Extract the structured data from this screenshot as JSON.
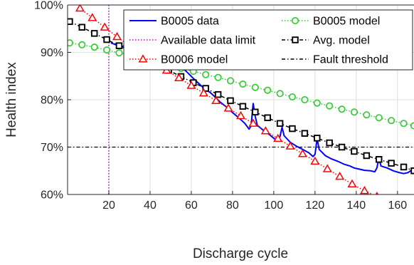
{
  "chart_data": {
    "type": "line",
    "xlabel": "Discharge cycle",
    "ylabel": "Health index",
    "xlim": [
      0,
      168
    ],
    "ylim": [
      60,
      100
    ],
    "x_ticks": [
      20,
      40,
      60,
      80,
      100,
      120,
      140,
      160
    ],
    "x_tick_labels": [
      "20",
      "40",
      "60",
      "80",
      "100",
      "120",
      "140",
      "160"
    ],
    "y_ticks": [
      60,
      70,
      80,
      90,
      100
    ],
    "y_tick_labels": [
      "60%",
      "70%",
      "80%",
      "90%",
      "100%"
    ],
    "grid": true,
    "legend_position": "top-right",
    "vlines": [
      {
        "name": "Available data limit",
        "x": 20,
        "color": "#cc00cc",
        "style": "dotted"
      }
    ],
    "hlines": [
      {
        "name": "Fault threshold",
        "y": 70,
        "color": "#000000",
        "style": "dashdot"
      }
    ],
    "series": [
      {
        "name": "B0005 data",
        "color": "#0000ff",
        "style": "solid",
        "marker": "none",
        "points": [
          [
            21,
            92.0
          ],
          [
            24,
            91.5
          ],
          [
            27,
            91.2
          ],
          [
            28,
            92.1
          ],
          [
            30,
            91.0
          ],
          [
            33,
            90.6
          ],
          [
            36,
            90.2
          ],
          [
            40,
            89.8
          ],
          [
            44,
            89.2
          ],
          [
            48,
            88.6
          ],
          [
            52,
            88.0
          ],
          [
            53,
            87.4
          ],
          [
            54,
            89.4
          ],
          [
            55,
            87.0
          ],
          [
            58,
            85.8
          ],
          [
            61,
            84.5
          ],
          [
            64,
            83.3
          ],
          [
            67,
            82.0
          ],
          [
            69,
            81.6
          ],
          [
            71,
            80.8
          ],
          [
            74,
            79.5
          ],
          [
            77,
            78.5
          ],
          [
            80,
            77.3
          ],
          [
            83,
            76.2
          ],
          [
            86,
            75.0
          ],
          [
            88,
            73.8
          ],
          [
            89,
            74.5
          ],
          [
            90,
            79.2
          ],
          [
            91,
            76.5
          ],
          [
            92,
            74.6
          ],
          [
            95,
            73.5
          ],
          [
            98,
            72.6
          ],
          [
            101,
            71.5
          ],
          [
            103,
            72.2
          ],
          [
            104,
            74.2
          ],
          [
            105,
            72.4
          ],
          [
            108,
            71.0
          ],
          [
            111,
            70.2
          ],
          [
            114,
            69.5
          ],
          [
            117,
            68.8
          ],
          [
            119,
            68.0
          ],
          [
            120,
            68.5
          ],
          [
            121,
            71.8
          ],
          [
            122,
            69.5
          ],
          [
            125,
            68.2
          ],
          [
            128,
            67.5
          ],
          [
            131,
            67.0
          ],
          [
            134,
            66.4
          ],
          [
            137,
            66.0
          ],
          [
            139,
            65.6
          ],
          [
            141,
            65.4
          ],
          [
            144,
            65.1
          ],
          [
            147,
            65.0
          ],
          [
            149,
            64.8
          ],
          [
            150,
            65.6
          ],
          [
            151,
            67.6
          ],
          [
            152,
            66.0
          ],
          [
            155,
            65.6
          ],
          [
            158,
            65.0
          ],
          [
            161,
            64.6
          ],
          [
            163,
            64.4
          ],
          [
            165,
            64.6
          ],
          [
            167,
            65.2
          ],
          [
            168,
            64.8
          ]
        ]
      },
      {
        "name": "B0005 model",
        "color": "#33cc33",
        "style": "dotted",
        "marker": "circle",
        "points": [
          [
            1,
            92.0
          ],
          [
            7,
            91.6
          ],
          [
            13,
            91.1
          ],
          [
            19,
            90.5
          ],
          [
            25,
            89.9
          ],
          [
            31,
            89.3
          ],
          [
            37,
            88.6
          ],
          [
            43,
            88.0
          ],
          [
            49,
            87.3
          ],
          [
            55,
            86.6
          ],
          [
            61,
            86.0
          ],
          [
            67,
            85.3
          ],
          [
            73,
            84.7
          ],
          [
            79,
            84.0
          ],
          [
            85,
            83.3
          ],
          [
            91,
            82.6
          ],
          [
            97,
            82.0
          ],
          [
            103,
            81.3
          ],
          [
            109,
            80.6
          ],
          [
            115,
            80.0
          ],
          [
            121,
            79.3
          ],
          [
            127,
            78.7
          ],
          [
            133,
            78.0
          ],
          [
            139,
            77.4
          ],
          [
            145,
            76.8
          ],
          [
            151,
            76.2
          ],
          [
            157,
            75.6
          ],
          [
            163,
            75.0
          ],
          [
            168,
            74.5
          ]
        ]
      },
      {
        "name": "Avg. model",
        "color": "#000000",
        "style": "dashdot",
        "marker": "square",
        "points": [
          [
            1,
            96.5
          ],
          [
            7,
            95.3
          ],
          [
            13,
            94.0
          ],
          [
            19,
            92.7
          ],
          [
            25,
            91.4
          ],
          [
            31,
            90.1
          ],
          [
            37,
            88.8
          ],
          [
            43,
            87.5
          ],
          [
            49,
            86.2
          ],
          [
            55,
            84.9
          ],
          [
            61,
            83.6
          ],
          [
            67,
            82.4
          ],
          [
            73,
            81.1
          ],
          [
            79,
            79.8
          ],
          [
            85,
            78.6
          ],
          [
            91,
            77.4
          ],
          [
            97,
            76.2
          ],
          [
            103,
            75.0
          ],
          [
            109,
            73.9
          ],
          [
            115,
            72.9
          ],
          [
            121,
            71.9
          ],
          [
            127,
            70.9
          ],
          [
            133,
            70.0
          ],
          [
            139,
            69.1
          ],
          [
            145,
            68.2
          ],
          [
            151,
            67.4
          ],
          [
            157,
            66.6
          ],
          [
            163,
            65.8
          ],
          [
            168,
            65.0
          ]
        ]
      },
      {
        "name": "B0006 model",
        "color": "#ff0000",
        "style": "dotted",
        "marker": "triangle",
        "points": [
          [
            6,
            99.3
          ],
          [
            12,
            97.3
          ],
          [
            18,
            95.3
          ],
          [
            24,
            93.3
          ],
          [
            30,
            91.3
          ],
          [
            36,
            89.3
          ],
          [
            42,
            87.7
          ],
          [
            48,
            86.2
          ],
          [
            54,
            84.6
          ],
          [
            60,
            83.0
          ],
          [
            66,
            81.4
          ],
          [
            72,
            79.8
          ],
          [
            78,
            78.2
          ],
          [
            84,
            76.6
          ],
          [
            90,
            75.0
          ],
          [
            96,
            73.4
          ],
          [
            102,
            71.8
          ],
          [
            108,
            70.2
          ],
          [
            114,
            68.6
          ],
          [
            120,
            67.0
          ],
          [
            126,
            65.4
          ],
          [
            132,
            63.8
          ],
          [
            138,
            62.2
          ],
          [
            144,
            60.8
          ],
          [
            150,
            59.6
          ]
        ]
      }
    ],
    "legend": [
      {
        "name": "B0005 data",
        "color": "#0000ff",
        "style": "solid",
        "marker": "none"
      },
      {
        "name": "B0005 model",
        "color": "#33cc33",
        "style": "dotted",
        "marker": "circle"
      },
      {
        "name": "Available data limit",
        "color": "#cc00cc",
        "style": "dotted",
        "marker": "none"
      },
      {
        "name": "Avg. model",
        "color": "#000000",
        "style": "dashdot",
        "marker": "square"
      },
      {
        "name": "B0006 model",
        "color": "#ff0000",
        "style": "dotted",
        "marker": "triangle"
      },
      {
        "name": "Fault threshold",
        "color": "#000000",
        "style": "dashdot",
        "marker": "none"
      }
    ]
  }
}
